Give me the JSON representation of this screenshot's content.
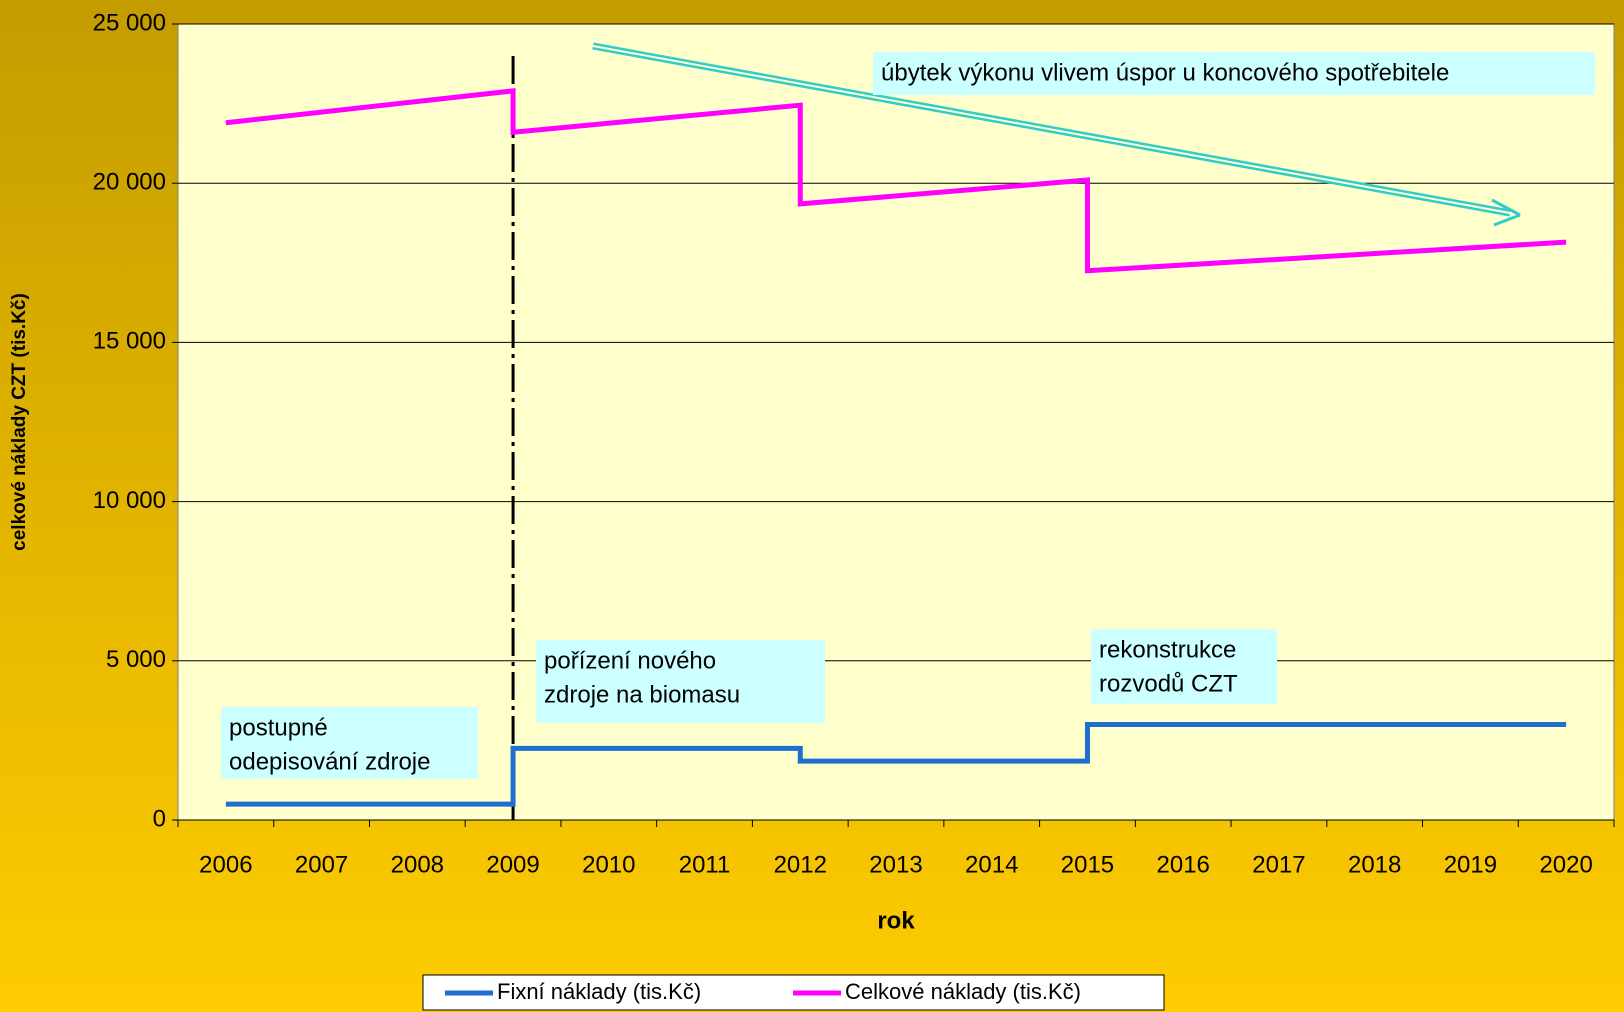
{
  "chart_data": {
    "type": "line",
    "x_label": "rok",
    "y_label": "celkové náklady CZT (tis.Kč)",
    "xlim": [
      2005.5,
      2020.5
    ],
    "xticks": [
      2006,
      2007,
      2008,
      2009,
      2010,
      2011,
      2012,
      2013,
      2014,
      2015,
      2016,
      2017,
      2018,
      2019,
      2020
    ],
    "ylim": [
      0,
      25000
    ],
    "yticks": [
      0,
      {
        "value": 5000,
        "label": "5 000"
      },
      {
        "value": 10000,
        "label": "10 000"
      },
      {
        "value": 15000,
        "label": "15 000"
      },
      {
        "value": 20000,
        "label": "20 000"
      },
      {
        "value": 25000,
        "label": "25 000"
      }
    ],
    "grid": true,
    "legend": "bottom",
    "series": [
      {
        "name": "Fixní náklady (tis.Kč)",
        "color": "#1f6fd0",
        "x": [
          2006,
          2009,
          2009,
          2012,
          2012,
          2015,
          2015,
          2020
        ],
        "values": [
          500,
          500,
          2250,
          2250,
          1850,
          1850,
          3000,
          3000
        ]
      },
      {
        "name": "Celkové náklady (tis.Kč)",
        "color": "#ff00ff",
        "x": [
          2006,
          2009,
          2009,
          2012,
          2012,
          2015,
          2015,
          2020
        ],
        "values": [
          21900,
          22900,
          21600,
          22450,
          19350,
          20100,
          17250,
          18150
        ]
      }
    ],
    "annotations": [
      {
        "lines": [
          "úbytek výkonu vlivem úspor u koncového spotřebitele"
        ]
      },
      {
        "lines": [
          "pořízení nového",
          "zdroje na biomasu"
        ]
      },
      {
        "lines": [
          "postupné",
          "odepisování zdroje"
        ]
      },
      {
        "lines": [
          "rekonstrukce",
          "rozvodů CZT"
        ]
      }
    ]
  }
}
